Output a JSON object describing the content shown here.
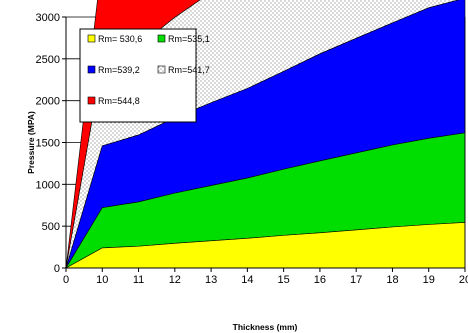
{
  "chart_data": {
    "type": "area",
    "stacked": true,
    "title": "",
    "xlabel": "Thickness (mm)",
    "ylabel": "Pressure (MPA)",
    "x": [
      0,
      10,
      11,
      12,
      13,
      14,
      15,
      16,
      17,
      18,
      19,
      20
    ],
    "xlim": [
      0,
      20
    ],
    "ylim": [
      0,
      3000
    ],
    "yticks": [
      0,
      500,
      1000,
      1500,
      2000,
      2500,
      3000
    ],
    "xtick_labels": [
      "0",
      "10",
      "11",
      "12",
      "13",
      "14",
      "15",
      "16",
      "17",
      "18",
      "19",
      "20"
    ],
    "grid": "horizontal",
    "legend_position": "top-left",
    "series": [
      {
        "name": "Rm= 530,6",
        "color": "#ffff00",
        "pattern": "solid",
        "values": [
          0,
          240,
          260,
          295,
          325,
          355,
          390,
          420,
          455,
          490,
          520,
          545
        ]
      },
      {
        "name": "Rm=535,1",
        "color": "#00dd00",
        "pattern": "solid",
        "values": [
          0,
          480,
          530,
          600,
          660,
          720,
          790,
          860,
          920,
          980,
          1030,
          1070
        ]
      },
      {
        "name": "Rm=539,2",
        "color": "#0000ff",
        "pattern": "solid",
        "values": [
          0,
          740,
          800,
          900,
          990,
          1070,
          1170,
          1280,
          1370,
          1460,
          1560,
          1610
        ]
      },
      {
        "name": "Rm=541,7",
        "color": "#ffffff",
        "pattern": "dotted",
        "values": [
          0,
          990,
          1060,
          1200,
          1320,
          1430,
          1570,
          1720,
          1840,
          1960,
          2080,
          2140
        ]
      },
      {
        "name": "Rm=544,8",
        "color": "#ff0000",
        "pattern": "solid",
        "values": [
          0,
          1240,
          1330,
          1530,
          1660,
          1800,
          1960,
          2140,
          2290,
          2440,
          2610,
          2690
        ]
      }
    ]
  }
}
